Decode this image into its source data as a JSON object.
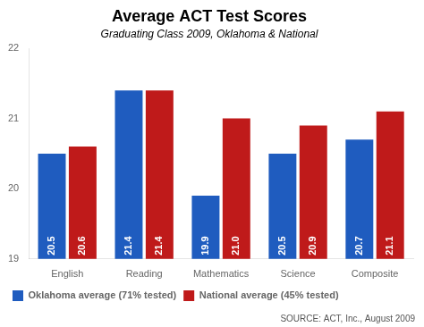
{
  "chart_data": {
    "type": "bar",
    "title": "Average ACT Test Scores",
    "subtitle": "Graduating Class 2009, Oklahoma & National",
    "categories": [
      "English",
      "Reading",
      "Mathematics",
      "Science",
      "Composite"
    ],
    "series": [
      {
        "name": "Oklahoma average (71% tested)",
        "color": "#1f5cbf",
        "values": [
          20.5,
          21.4,
          19.9,
          20.5,
          20.7
        ],
        "value_labels": [
          "20.5",
          "21.4",
          "19.9",
          "20.5",
          "20.7"
        ]
      },
      {
        "name": "National average (45% tested)",
        "color": "#bf1a1a",
        "values": [
          20.6,
          21.4,
          21.0,
          20.9,
          21.1
        ],
        "value_labels": [
          "20.6",
          "21.4",
          "21.0",
          "20.9",
          "21.1"
        ]
      }
    ],
    "ylim": [
      19,
      22
    ],
    "yticks": [
      19,
      20,
      21,
      22
    ],
    "grid": false,
    "legend": "bottom",
    "data_labels": true,
    "annotations": [
      "SOURCE: ACT, Inc., August 2009"
    ]
  }
}
